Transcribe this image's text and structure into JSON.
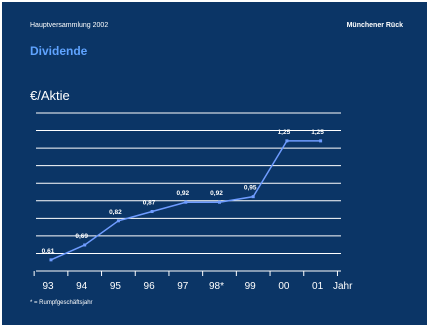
{
  "header": {
    "event": "Hauptversammlung 2002",
    "company": "Münchener Rück"
  },
  "title": "Dividende",
  "footnote": "* = Rumpfgeschäftsjahr",
  "colors": {
    "background": "#0b3566",
    "title": "#5fa3ff",
    "line": "#6f9cff",
    "grid": "#ffffff",
    "text": "#ffffff"
  },
  "chart_data": {
    "type": "line",
    "ylabel": "€/Aktie",
    "xlabel": "Jahr",
    "categories": [
      "93",
      "94",
      "95",
      "96",
      "97",
      "98*",
      "99",
      "00",
      "01"
    ],
    "values": [
      0.61,
      0.69,
      0.82,
      0.87,
      0.92,
      0.92,
      0.95,
      1.25,
      1.25
    ],
    "data_labels": [
      "0,61",
      "0,69",
      "0,82",
      "0,87",
      "0,92",
      "0,92",
      "0,95",
      "1,25",
      "1,25"
    ],
    "ylim": [
      0.55,
      1.4
    ],
    "grid": true,
    "legend": "none"
  }
}
